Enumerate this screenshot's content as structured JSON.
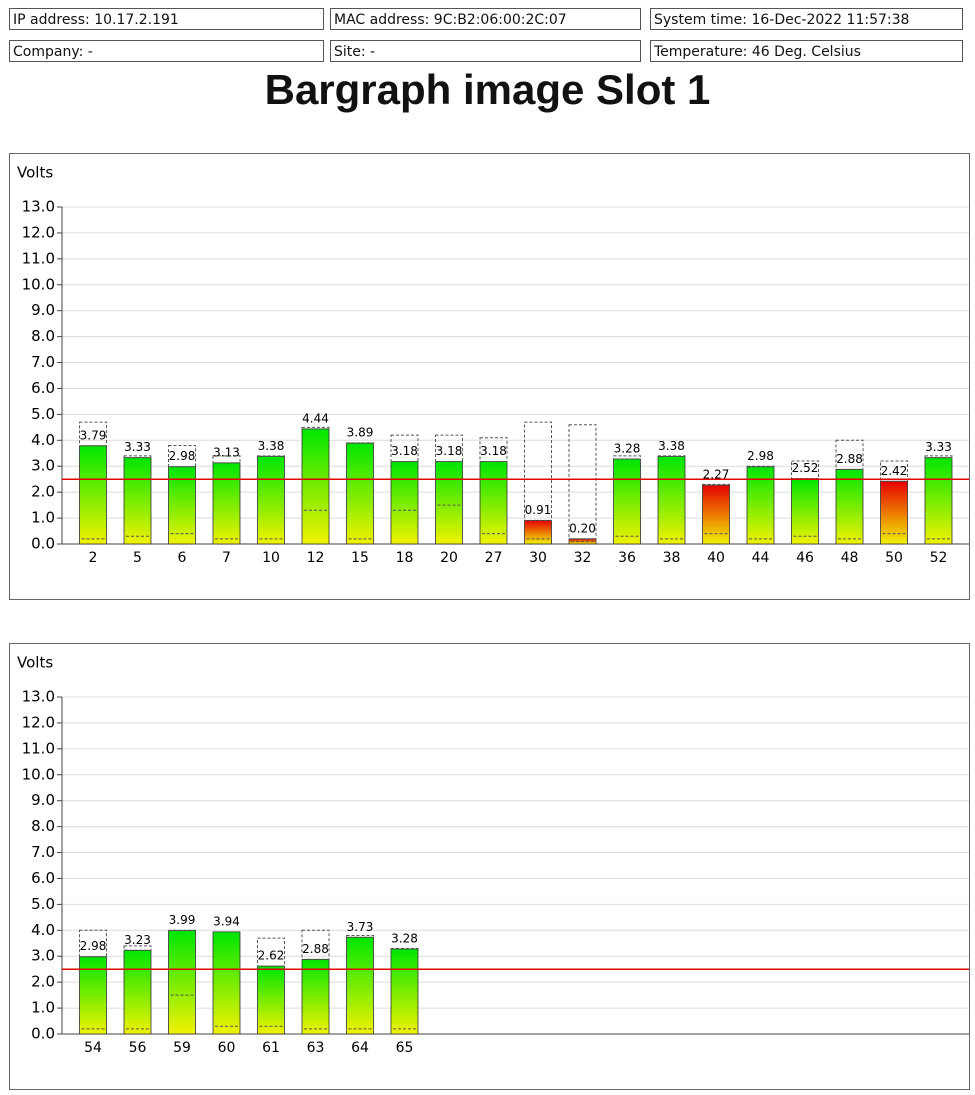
{
  "header": {
    "ip": "IP address: 10.17.2.191",
    "mac": "MAC address: 9C:B2:06:00:2C:07",
    "time": "System time: 16-Dec-2022 11:57:38",
    "company": "Company: -",
    "site": "Site: -",
    "temperature": "Temperature: 46 Deg. Celsius"
  },
  "title": "Bargraph image Slot 1",
  "chart_data": [
    {
      "type": "bar",
      "y_label": "Volts",
      "categories": [
        "2",
        "5",
        "6",
        "7",
        "10",
        "12",
        "15",
        "18",
        "20",
        "27",
        "30",
        "32",
        "36",
        "38",
        "40",
        "44",
        "46",
        "48",
        "50",
        "52"
      ],
      "values": [
        3.79,
        3.33,
        2.98,
        3.13,
        3.38,
        4.44,
        3.89,
        3.18,
        3.18,
        3.18,
        0.91,
        0.2,
        3.28,
        3.38,
        2.27,
        2.98,
        2.52,
        2.88,
        2.42,
        3.33
      ],
      "value_labels": [
        "3.79",
        "3.33",
        "2.98",
        "3.13",
        "3.38",
        "4.44",
        "3.89",
        "3.18",
        "3.18",
        "3.18",
        "0.91",
        "0.20",
        "3.28",
        "3.38",
        "2.27",
        "2.98",
        "2.52",
        "2.88",
        "2.42",
        "3.33"
      ],
      "max_values": [
        4.7,
        3.4,
        3.8,
        3.4,
        3.4,
        4.5,
        3.9,
        4.2,
        4.2,
        4.1,
        4.7,
        4.6,
        3.4,
        3.4,
        2.3,
        3.0,
        3.2,
        4.0,
        3.2,
        3.4
      ],
      "min_values": [
        0.2,
        0.3,
        0.4,
        0.2,
        0.2,
        1.3,
        0.2,
        1.3,
        1.5,
        0.4,
        0.2,
        0.1,
        0.3,
        0.2,
        0.4,
        0.2,
        0.3,
        0.2,
        0.4,
        0.2
      ],
      "threshold": 2.5,
      "colors": {
        "high": "#00e600",
        "low": "#e60000",
        "bottom": "#f2f200",
        "threshold": "#e00000"
      },
      "ylim": [
        0,
        13
      ],
      "yticks": [
        {
          "value": 0,
          "label": "0.0"
        },
        {
          "value": 1,
          "label": "1.0"
        },
        {
          "value": 2,
          "label": "2.0"
        },
        {
          "value": 3,
          "label": "3.0"
        },
        {
          "value": 4,
          "label": "4.0"
        },
        {
          "value": 5,
          "label": "5.0"
        },
        {
          "value": 6,
          "label": "6.0"
        },
        {
          "value": 7,
          "label": "7.0"
        },
        {
          "value": 8,
          "label": "8.0"
        },
        {
          "value": 9,
          "label": "9.0"
        },
        {
          "value": 10,
          "label": "10.0"
        },
        {
          "value": 11,
          "label": "11.0"
        },
        {
          "value": 12,
          "label": "12.0"
        },
        {
          "value": 13,
          "label": "13.0"
        }
      ],
      "grid": true
    },
    {
      "type": "bar",
      "y_label": "Volts",
      "categories": [
        "54",
        "56",
        "59",
        "60",
        "61",
        "63",
        "64",
        "65"
      ],
      "values": [
        2.98,
        3.23,
        3.99,
        3.94,
        2.62,
        2.88,
        3.73,
        3.28
      ],
      "value_labels": [
        "2.98",
        "3.23",
        "3.99",
        "3.94",
        "2.62",
        "2.88",
        "3.73",
        "3.28"
      ],
      "max_values": [
        4.0,
        3.4,
        4.0,
        3.9,
        3.7,
        4.0,
        3.8,
        3.3
      ],
      "min_values": [
        0.2,
        0.2,
        1.5,
        0.3,
        0.3,
        0.2,
        0.2,
        0.2
      ],
      "threshold": 2.5,
      "colors": {
        "high": "#00e600",
        "low": "#e60000",
        "bottom": "#f2f200",
        "threshold": "#e00000"
      },
      "ylim": [
        0,
        13
      ],
      "yticks": [
        {
          "value": 0,
          "label": "0.0"
        },
        {
          "value": 1,
          "label": "1.0"
        },
        {
          "value": 2,
          "label": "2.0"
        },
        {
          "value": 3,
          "label": "3.0"
        },
        {
          "value": 4,
          "label": "4.0"
        },
        {
          "value": 5,
          "label": "5.0"
        },
        {
          "value": 6,
          "label": "6.0"
        },
        {
          "value": 7,
          "label": "7.0"
        },
        {
          "value": 8,
          "label": "8.0"
        },
        {
          "value": 9,
          "label": "9.0"
        },
        {
          "value": 10,
          "label": "10.0"
        },
        {
          "value": 11,
          "label": "11.0"
        },
        {
          "value": 12,
          "label": "12.0"
        },
        {
          "value": 13,
          "label": "13.0"
        }
      ],
      "grid": true
    }
  ]
}
